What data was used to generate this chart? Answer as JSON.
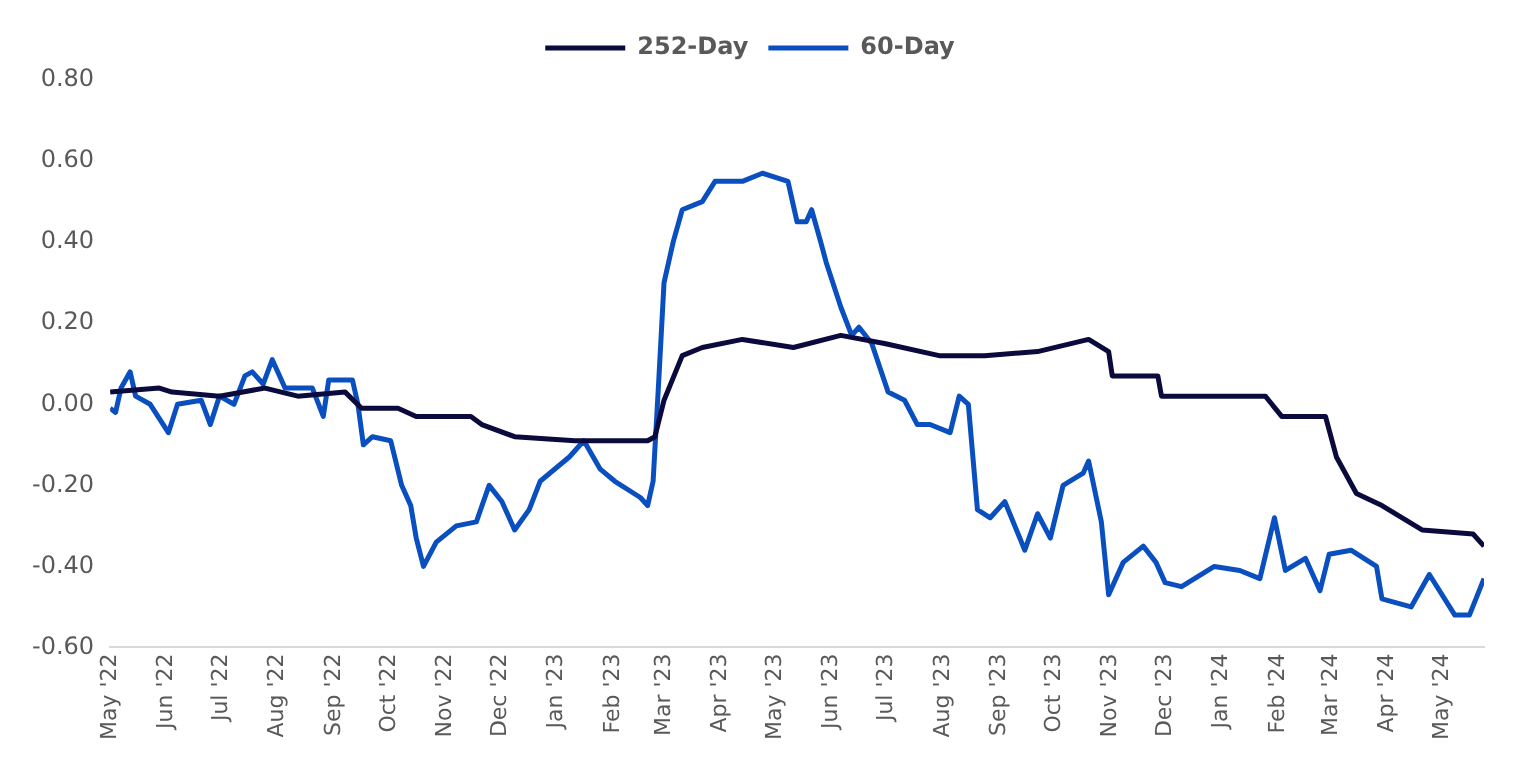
{
  "chart_data": {
    "type": "line",
    "xlim": [
      "2022-05-01",
      "2024-05-24"
    ],
    "xticks": [
      {
        "value": "2022-05-01",
        "label": "May '22"
      },
      {
        "value": "2022-06-01",
        "label": "Jun '22"
      },
      {
        "value": "2022-07-01",
        "label": "Jul '22"
      },
      {
        "value": "2022-08-01",
        "label": "Aug '22"
      },
      {
        "value": "2022-09-01",
        "label": "Sep '22"
      },
      {
        "value": "2022-10-01",
        "label": "Oct '22"
      },
      {
        "value": "2022-11-01",
        "label": "Nov '22"
      },
      {
        "value": "2022-12-01",
        "label": "Dec '22"
      },
      {
        "value": "2023-01-01",
        "label": "Jan '23"
      },
      {
        "value": "2023-02-01",
        "label": "Feb '23"
      },
      {
        "value": "2023-03-01",
        "label": "Mar '23"
      },
      {
        "value": "2023-04-01",
        "label": "Apr '23"
      },
      {
        "value": "2023-05-01",
        "label": "May '23"
      },
      {
        "value": "2023-06-01",
        "label": "Jun '23"
      },
      {
        "value": "2023-07-01",
        "label": "Jul '23"
      },
      {
        "value": "2023-08-01",
        "label": "Aug '23"
      },
      {
        "value": "2023-09-01",
        "label": "Sep '23"
      },
      {
        "value": "2023-10-01",
        "label": "Oct '23"
      },
      {
        "value": "2023-11-01",
        "label": "Nov '23"
      },
      {
        "value": "2023-12-01",
        "label": "Dec '23"
      },
      {
        "value": "2024-01-01",
        "label": "Jan '24"
      },
      {
        "value": "2024-02-01",
        "label": "Feb '24"
      },
      {
        "value": "2024-03-01",
        "label": "Mar '24"
      },
      {
        "value": "2024-04-01",
        "label": "Apr '24"
      },
      {
        "value": "2024-05-01",
        "label": "May '24"
      }
    ],
    "ylim": [
      -0.6,
      0.8
    ],
    "yticks": [
      {
        "value": -0.6,
        "label": "-0.60"
      },
      {
        "value": -0.4,
        "label": "-0.40"
      },
      {
        "value": -0.2,
        "label": "-0.20"
      },
      {
        "value": 0,
        "label": "0.00"
      },
      {
        "value": 0.2,
        "label": "0.20"
      },
      {
        "value": 0.4,
        "label": "0.40"
      },
      {
        "value": 0.6,
        "label": "0.60"
      },
      {
        "value": 0.8,
        "label": "0.80"
      }
    ],
    "grid": false,
    "legend": "top",
    "marker": "none",
    "line_style": "solid",
    "series": [
      {
        "name": "252-Day",
        "color": "#0b0a3d",
        "x": [
          "2022-05-01",
          "2022-05-28",
          "2022-06-04",
          "2022-06-30",
          "2022-07-25",
          "2022-08-12",
          "2022-09-07",
          "2022-09-16",
          "2022-10-06",
          "2022-10-16",
          "2022-11-15",
          "2022-11-21",
          "2022-12-09",
          "2023-01-11",
          "2023-02-20",
          "2023-02-24",
          "2023-03-01",
          "2023-03-11",
          "2023-03-22",
          "2023-04-13",
          "2023-05-11",
          "2023-06-06",
          "2023-06-30",
          "2023-07-30",
          "2023-08-24",
          "2023-09-22",
          "2023-10-20",
          "2023-10-31",
          "2023-11-02",
          "2023-11-27",
          "2023-11-29",
          "2024-01-25",
          "2024-02-03",
          "2024-02-27",
          "2024-03-04",
          "2024-03-15",
          "2024-03-29",
          "2024-04-20",
          "2024-05-18",
          "2024-05-24"
        ],
        "values": [
          0.03,
          0.04,
          0.03,
          0.02,
          0.04,
          0.02,
          0.03,
          -0.01,
          -0.01,
          -0.03,
          -0.03,
          -0.05,
          -0.08,
          -0.09,
          -0.09,
          -0.08,
          0.01,
          0.12,
          0.14,
          0.16,
          0.14,
          0.17,
          0.15,
          0.12,
          0.12,
          0.13,
          0.16,
          0.13,
          0.07,
          0.07,
          0.02,
          0.02,
          -0.03,
          -0.03,
          -0.13,
          -0.22,
          -0.25,
          -0.31,
          -0.32,
          -0.35
        ]
      },
      {
        "name": "60-Day",
        "color": "#0a4fbf",
        "x": [
          "2022-05-01",
          "2022-05-04",
          "2022-05-07",
          "2022-05-12",
          "2022-05-15",
          "2022-05-23",
          "2022-06-02",
          "2022-06-07",
          "2022-06-20",
          "2022-06-25",
          "2022-06-30",
          "2022-07-08",
          "2022-07-14",
          "2022-07-18",
          "2022-07-24",
          "2022-07-29",
          "2022-08-05",
          "2022-08-20",
          "2022-08-26",
          "2022-08-29",
          "2022-09-11",
          "2022-09-14",
          "2022-09-17",
          "2022-09-22",
          "2022-10-02",
          "2022-10-08",
          "2022-10-13",
          "2022-10-16",
          "2022-10-20",
          "2022-10-27",
          "2022-11-07",
          "2022-11-18",
          "2022-11-25",
          "2022-12-02",
          "2022-12-09",
          "2022-12-17",
          "2022-12-23",
          "2023-01-08",
          "2023-01-16",
          "2023-01-25",
          "2023-02-02",
          "2023-02-16",
          "2023-02-20",
          "2023-02-23",
          "2023-02-26",
          "2023-03-01",
          "2023-03-06",
          "2023-03-11",
          "2023-03-22",
          "2023-03-29",
          "2023-04-13",
          "2023-04-24",
          "2023-05-08",
          "2023-05-13",
          "2023-05-18",
          "2023-05-21",
          "2023-05-26",
          "2023-05-29",
          "2023-06-06",
          "2023-06-12",
          "2023-06-16",
          "2023-06-23",
          "2023-07-02",
          "2023-07-11",
          "2023-07-18",
          "2023-07-25",
          "2023-08-05",
          "2023-08-10",
          "2023-08-15",
          "2023-08-20",
          "2023-08-27",
          "2023-09-04",
          "2023-09-15",
          "2023-09-22",
          "2023-09-29",
          "2023-10-06",
          "2023-10-17",
          "2023-10-20",
          "2023-10-27",
          "2023-10-31",
          "2023-11-08",
          "2023-11-19",
          "2023-11-26",
          "2023-12-01",
          "2023-12-10",
          "2023-12-28",
          "2024-01-11",
          "2024-01-22",
          "2024-01-30",
          "2024-02-05",
          "2024-02-16",
          "2024-02-24",
          "2024-02-29",
          "2024-03-12",
          "2024-03-26",
          "2024-03-29",
          "2024-04-14",
          "2024-04-24",
          "2024-05-08",
          "2024-05-16",
          "2024-05-24"
        ],
        "values": [
          -0.01,
          -0.02,
          0.04,
          0.08,
          0.02,
          0.0,
          -0.07,
          0.0,
          0.01,
          -0.05,
          0.02,
          0.0,
          0.07,
          0.08,
          0.05,
          0.11,
          0.04,
          0.04,
          -0.03,
          0.06,
          0.06,
          0.0,
          -0.1,
          -0.08,
          -0.09,
          -0.2,
          -0.25,
          -0.33,
          -0.4,
          -0.34,
          -0.3,
          -0.29,
          -0.2,
          -0.24,
          -0.31,
          -0.26,
          -0.19,
          -0.13,
          -0.09,
          -0.16,
          -0.19,
          -0.23,
          -0.25,
          -0.19,
          0.05,
          0.3,
          0.4,
          0.48,
          0.5,
          0.55,
          0.55,
          0.57,
          0.55,
          0.45,
          0.45,
          0.48,
          0.4,
          0.35,
          0.24,
          0.17,
          0.19,
          0.15,
          0.03,
          0.01,
          -0.05,
          -0.05,
          -0.07,
          0.02,
          0.0,
          -0.26,
          -0.28,
          -0.24,
          -0.36,
          -0.27,
          -0.33,
          -0.2,
          -0.17,
          -0.14,
          -0.29,
          -0.47,
          -0.39,
          -0.35,
          -0.39,
          -0.44,
          -0.45,
          -0.4,
          -0.41,
          -0.43,
          -0.28,
          -0.41,
          -0.38,
          -0.46,
          -0.37,
          -0.36,
          -0.4,
          -0.48,
          -0.5,
          -0.42,
          -0.52,
          -0.52,
          -0.43
        ]
      }
    ]
  }
}
